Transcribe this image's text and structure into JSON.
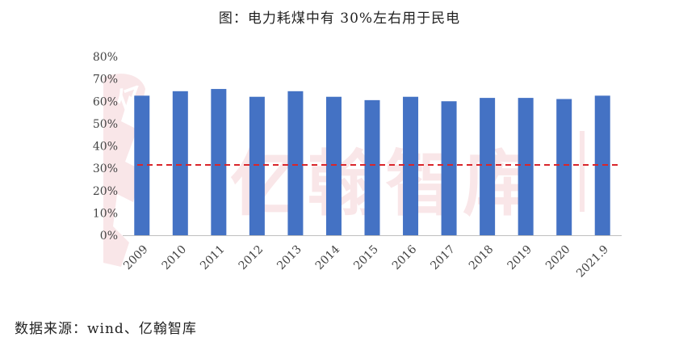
{
  "title": "图：电力耗煤中有 30%左右用于民电",
  "source": "数据来源：wind、亿翰智库",
  "watermark": "亿翰智库",
  "colors": {
    "bar": "#4472C4",
    "reference_line": "#D9262B",
    "axis": "#BFBFBF",
    "watermark": "#E8A5AC"
  },
  "chart_data": {
    "type": "bar",
    "title": "图：电力耗煤中有 30%左右用于民电",
    "xlabel": "",
    "ylabel": "",
    "categories": [
      "2009",
      "2010",
      "2011",
      "2012",
      "2013",
      "2014",
      "2015",
      "2016",
      "2017",
      "2018",
      "2019",
      "2020",
      "2021.9"
    ],
    "values": [
      62.5,
      64.5,
      65.5,
      62,
      64.5,
      62,
      60.5,
      62,
      60,
      61.5,
      61.5,
      61,
      62.5
    ],
    "y_ticks": [
      "0%",
      "10%",
      "20%",
      "30%",
      "40%",
      "50%",
      "60%",
      "70%",
      "80%"
    ],
    "ylim": [
      0,
      80
    ],
    "unit": "%",
    "reference_line": 31.5,
    "grid": false,
    "legend": "none"
  }
}
